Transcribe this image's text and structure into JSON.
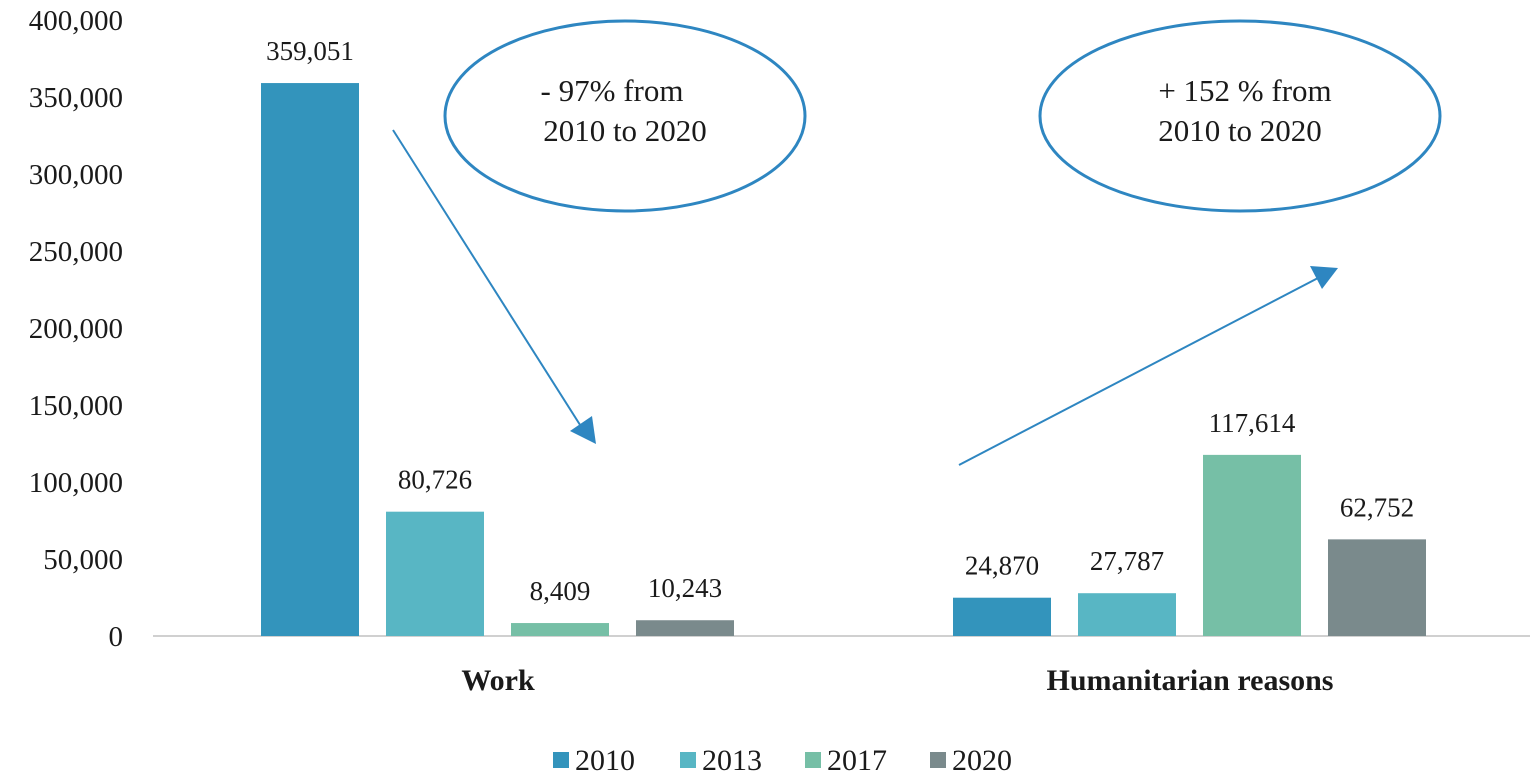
{
  "chart_data": {
    "type": "bar",
    "categories": [
      "Work",
      "Humanitarian reasons"
    ],
    "series": [
      {
        "name": "2010",
        "color": "#3394bc",
        "values": [
          359051,
          24870
        ]
      },
      {
        "name": "2013",
        "color": "#58b6c4",
        "values": [
          80726,
          27787
        ]
      },
      {
        "name": "2017",
        "color": "#76bfa6",
        "values": [
          8409,
          117614
        ]
      },
      {
        "name": "2020",
        "color": "#7a8a8c",
        "values": [
          10243,
          62752
        ]
      }
    ],
    "data_labels": [
      [
        "359,051",
        "24,870"
      ],
      [
        "80,726",
        "27,787"
      ],
      [
        "8,409",
        "117,614"
      ],
      [
        "10,243",
        "62,752"
      ]
    ],
    "ylim": [
      0,
      400000
    ],
    "yticks": [
      0,
      50000,
      100000,
      150000,
      200000,
      250000,
      300000,
      350000,
      400000
    ],
    "ytick_labels": [
      "0",
      "50,000",
      "100,000",
      "150,000",
      "200,000",
      "250,000",
      "300,000",
      "350,000",
      "400,000"
    ],
    "grid": false,
    "legend_position": "bottom",
    "annotations": [
      {
        "lines": [
          "- 97% from",
          "2010 to 2020"
        ],
        "trend": "down",
        "category": "Work"
      },
      {
        "lines": [
          "+ 152 % from",
          "2010 to 2020"
        ],
        "trend": "up",
        "category": "Humanitarian reasons"
      }
    ],
    "annotation_color": "#2e86c1"
  }
}
